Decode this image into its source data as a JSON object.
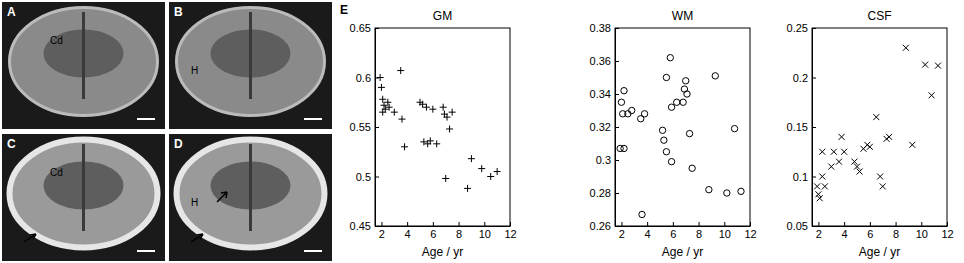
{
  "images": [
    {
      "label": "A",
      "annotation": "Cd"
    },
    {
      "label": "B",
      "annotation": "H"
    },
    {
      "label": "C",
      "annotation": "Cd"
    },
    {
      "label": "D",
      "annotation": "H"
    }
  ],
  "panel_label": "E",
  "chart_data": [
    {
      "type": "scatter",
      "title": "GM",
      "xlabel": "Age / yr",
      "marker": "plus",
      "color": "#000000",
      "x": [
        1.9,
        2.0,
        2.1,
        2.2,
        2.3,
        2.1,
        2.5,
        2.6,
        3.0,
        3.5,
        3.6,
        3.8,
        5.0,
        5.2,
        5.3,
        5.5,
        5.6,
        5.8,
        6.0,
        6.3,
        6.8,
        6.9,
        7.0,
        7.1,
        7.3,
        7.5,
        8.7,
        9.0,
        9.8,
        10.5,
        11.0
      ],
      "values": [
        0.6,
        0.59,
        0.578,
        0.572,
        0.568,
        0.565,
        0.575,
        0.57,
        0.565,
        0.607,
        0.558,
        0.53,
        0.575,
        0.573,
        0.535,
        0.57,
        0.533,
        0.536,
        0.568,
        0.533,
        0.57,
        0.563,
        0.498,
        0.56,
        0.548,
        0.565,
        0.488,
        0.518,
        0.508,
        0.5,
        0.505
      ],
      "xlim": [
        1.5,
        12
      ],
      "xticks": [
        2,
        4,
        6,
        8,
        10,
        12
      ],
      "ylim": [
        0.45,
        0.65
      ],
      "yticks": [
        0.45,
        0.5,
        0.55,
        0.6,
        0.65
      ]
    },
    {
      "type": "scatter",
      "title": "WM",
      "xlabel": "Age / yr",
      "marker": "circle",
      "color": "#000000",
      "x": [
        1.9,
        2.0,
        2.1,
        2.2,
        2.2,
        2.5,
        2.8,
        3.5,
        3.8,
        3.6,
        5.2,
        5.3,
        5.5,
        5.5,
        5.8,
        5.9,
        5.9,
        6.3,
        6.8,
        6.9,
        7.0,
        7.1,
        7.3,
        7.5,
        8.8,
        9.3,
        10.2,
        10.8,
        11.3
      ],
      "values": [
        0.307,
        0.335,
        0.328,
        0.342,
        0.307,
        0.328,
        0.33,
        0.325,
        0.328,
        0.267,
        0.318,
        0.312,
        0.35,
        0.305,
        0.362,
        0.299,
        0.332,
        0.335,
        0.335,
        0.343,
        0.348,
        0.34,
        0.316,
        0.295,
        0.282,
        0.351,
        0.28,
        0.319,
        0.281
      ],
      "xlim": [
        1.5,
        12
      ],
      "xticks": [
        2,
        4,
        6,
        8,
        10,
        12
      ],
      "ylim": [
        0.26,
        0.38
      ],
      "yticks": [
        0.26,
        0.28,
        0.3,
        0.32,
        0.34,
        0.36,
        0.38
      ]
    },
    {
      "type": "scatter",
      "title": "CSF",
      "xlabel": "Age / yr",
      "marker": "x",
      "color": "#000000",
      "x": [
        1.9,
        2.0,
        2.1,
        2.3,
        2.3,
        2.5,
        3.0,
        3.2,
        3.6,
        3.8,
        4.0,
        4.8,
        5.0,
        5.2,
        5.5,
        5.8,
        6.0,
        6.5,
        6.8,
        7.0,
        7.3,
        7.5,
        8.8,
        9.3,
        10.3,
        10.8,
        11.3
      ],
      "values": [
        0.09,
        0.082,
        0.078,
        0.1,
        0.125,
        0.09,
        0.11,
        0.125,
        0.115,
        0.14,
        0.125,
        0.115,
        0.11,
        0.105,
        0.128,
        0.132,
        0.13,
        0.16,
        0.1,
        0.09,
        0.138,
        0.14,
        0.23,
        0.132,
        0.213,
        0.182,
        0.212
      ],
      "xlim": [
        1.5,
        12
      ],
      "xticks": [
        2,
        4,
        6,
        8,
        10,
        12
      ],
      "ylim": [
        0.05,
        0.25
      ],
      "yticks": [
        0.05,
        0.1,
        0.15,
        0.2,
        0.25
      ]
    }
  ]
}
